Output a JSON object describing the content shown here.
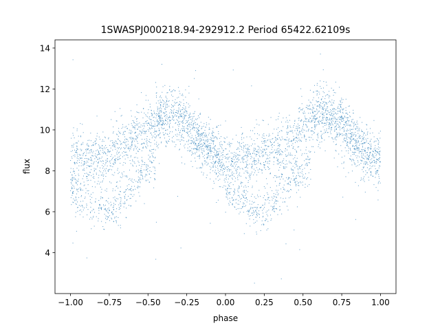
{
  "chart_data": {
    "type": "scatter",
    "title": "1SWASPJ000218.94-292912.2 Period 65422.62109s",
    "xlabel": "phase",
    "ylabel": "flux",
    "xlim": [
      -1.1,
      1.1
    ],
    "ylim": [
      2.0,
      14.4
    ],
    "xticks": [
      -1.0,
      -0.75,
      -0.5,
      -0.25,
      0.0,
      0.25,
      0.5,
      0.75,
      1.0
    ],
    "xtick_labels": [
      "−1.00",
      "−0.75",
      "−0.50",
      "−0.25",
      "0.00",
      "0.25",
      "0.50",
      "0.75",
      "1.00"
    ],
    "yticks": [
      4,
      6,
      8,
      10,
      12,
      14
    ],
    "ytick_labels": [
      "4",
      "6",
      "8",
      "10",
      "12",
      "14"
    ],
    "grid": false,
    "legend": "none",
    "marker_color": "#1f77b4",
    "series": [
      {
        "phase_range": [
          -1.0,
          1.0
        ],
        "trend_phase": [
          -1.0,
          -0.9,
          -0.75,
          -0.6,
          -0.45,
          -0.35,
          -0.25,
          -0.15,
          -0.05,
          0.0,
          0.1,
          0.25,
          0.4,
          0.55,
          0.65,
          0.75,
          0.85,
          0.95,
          1.0
        ],
        "trend_flux": [
          8.6,
          8.5,
          8.8,
          9.4,
          10.5,
          10.6,
          10.4,
          9.3,
          8.6,
          8.5,
          8.4,
          8.8,
          9.3,
          10.5,
          10.8,
          10.4,
          9.3,
          8.6,
          8.5
        ],
        "lower_branch_phase": [
          -1.0,
          -0.9,
          -0.8,
          -0.7,
          -0.55,
          -0.45
        ],
        "lower_branch_flux": [
          7.0,
          6.6,
          6.0,
          6.3,
          7.8,
          8.4
        ],
        "scatter_sd": 0.9,
        "outlier_flux_range": [
          2.5,
          13.8
        ]
      }
    ]
  }
}
